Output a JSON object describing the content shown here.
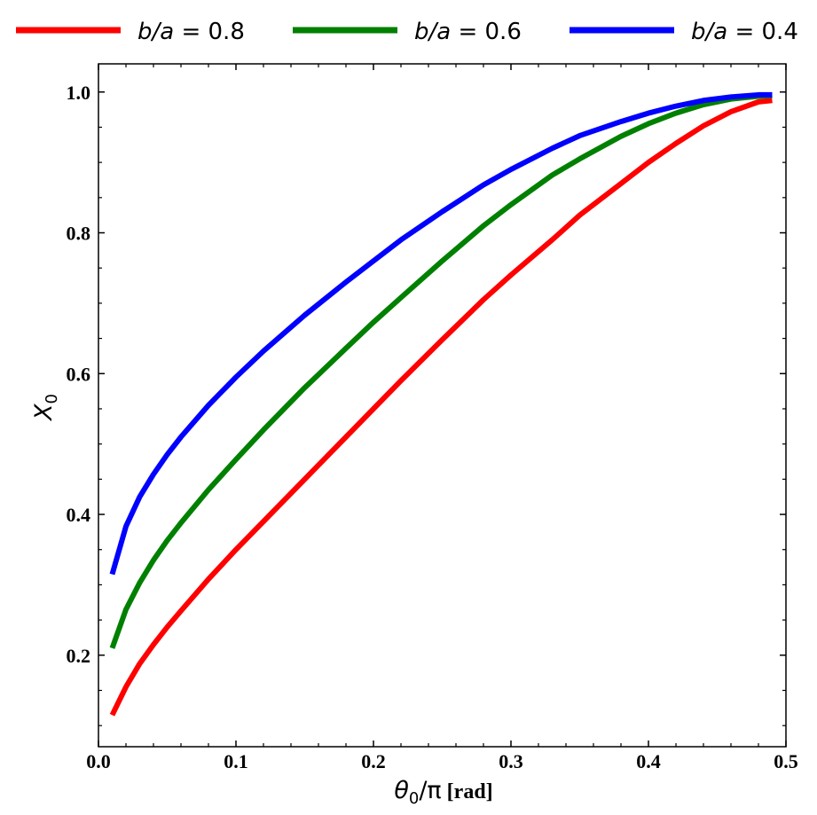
{
  "chart_data": {
    "type": "line",
    "xlabel_main": "θ",
    "xlabel_sub": "0",
    "xlabel_div": "/π",
    "xlabel_unit": "[rad]",
    "ylabel_main": "X",
    "ylabel_sub": "0",
    "xlim": [
      0.0,
      0.5
    ],
    "ylim": [
      0.07,
      1.04
    ],
    "x_ticks": [
      0.0,
      0.1,
      0.2,
      0.3,
      0.4,
      0.5
    ],
    "x_tick_labels": [
      "0.0",
      "0.1",
      "0.2",
      "0.3",
      "0.4",
      "0.5"
    ],
    "y_ticks": [
      0.2,
      0.4,
      0.6,
      0.8,
      1.0
    ],
    "y_tick_labels": [
      "0.2",
      "0.4",
      "0.6",
      "0.8",
      "1.0"
    ],
    "grid": false,
    "legend_position": "top (above plot)",
    "x": [
      0.01,
      0.02,
      0.03,
      0.04,
      0.05,
      0.06,
      0.08,
      0.1,
      0.12,
      0.15,
      0.18,
      0.2,
      0.22,
      0.25,
      0.28,
      0.3,
      0.33,
      0.35,
      0.38,
      0.4,
      0.42,
      0.44,
      0.46,
      0.48,
      0.49
    ],
    "series": [
      {
        "legend_var": "b/a",
        "legend_eq": " = ",
        "legend_value": "0.8",
        "color": "#ff0000",
        "values": [
          0.115,
          0.155,
          0.188,
          0.215,
          0.24,
          0.263,
          0.308,
          0.35,
          0.39,
          0.45,
          0.51,
          0.55,
          0.59,
          0.648,
          0.705,
          0.74,
          0.79,
          0.825,
          0.87,
          0.9,
          0.927,
          0.952,
          0.972,
          0.986,
          0.988
        ]
      },
      {
        "legend_var": "b/a",
        "legend_eq": " = ",
        "legend_value": "0.6",
        "color": "#008000",
        "values": [
          0.21,
          0.265,
          0.303,
          0.335,
          0.363,
          0.388,
          0.435,
          0.478,
          0.52,
          0.58,
          0.636,
          0.673,
          0.708,
          0.76,
          0.81,
          0.84,
          0.882,
          0.905,
          0.937,
          0.955,
          0.97,
          0.982,
          0.99,
          0.994,
          0.995
        ]
      },
      {
        "legend_var": "b/a",
        "legend_eq": " = ",
        "legend_value": "0.4",
        "color": "#0000ff",
        "values": [
          0.315,
          0.383,
          0.425,
          0.457,
          0.485,
          0.51,
          0.555,
          0.595,
          0.632,
          0.683,
          0.73,
          0.76,
          0.79,
          0.83,
          0.868,
          0.89,
          0.92,
          0.938,
          0.958,
          0.97,
          0.98,
          0.988,
          0.993,
          0.996,
          0.996
        ]
      }
    ]
  }
}
